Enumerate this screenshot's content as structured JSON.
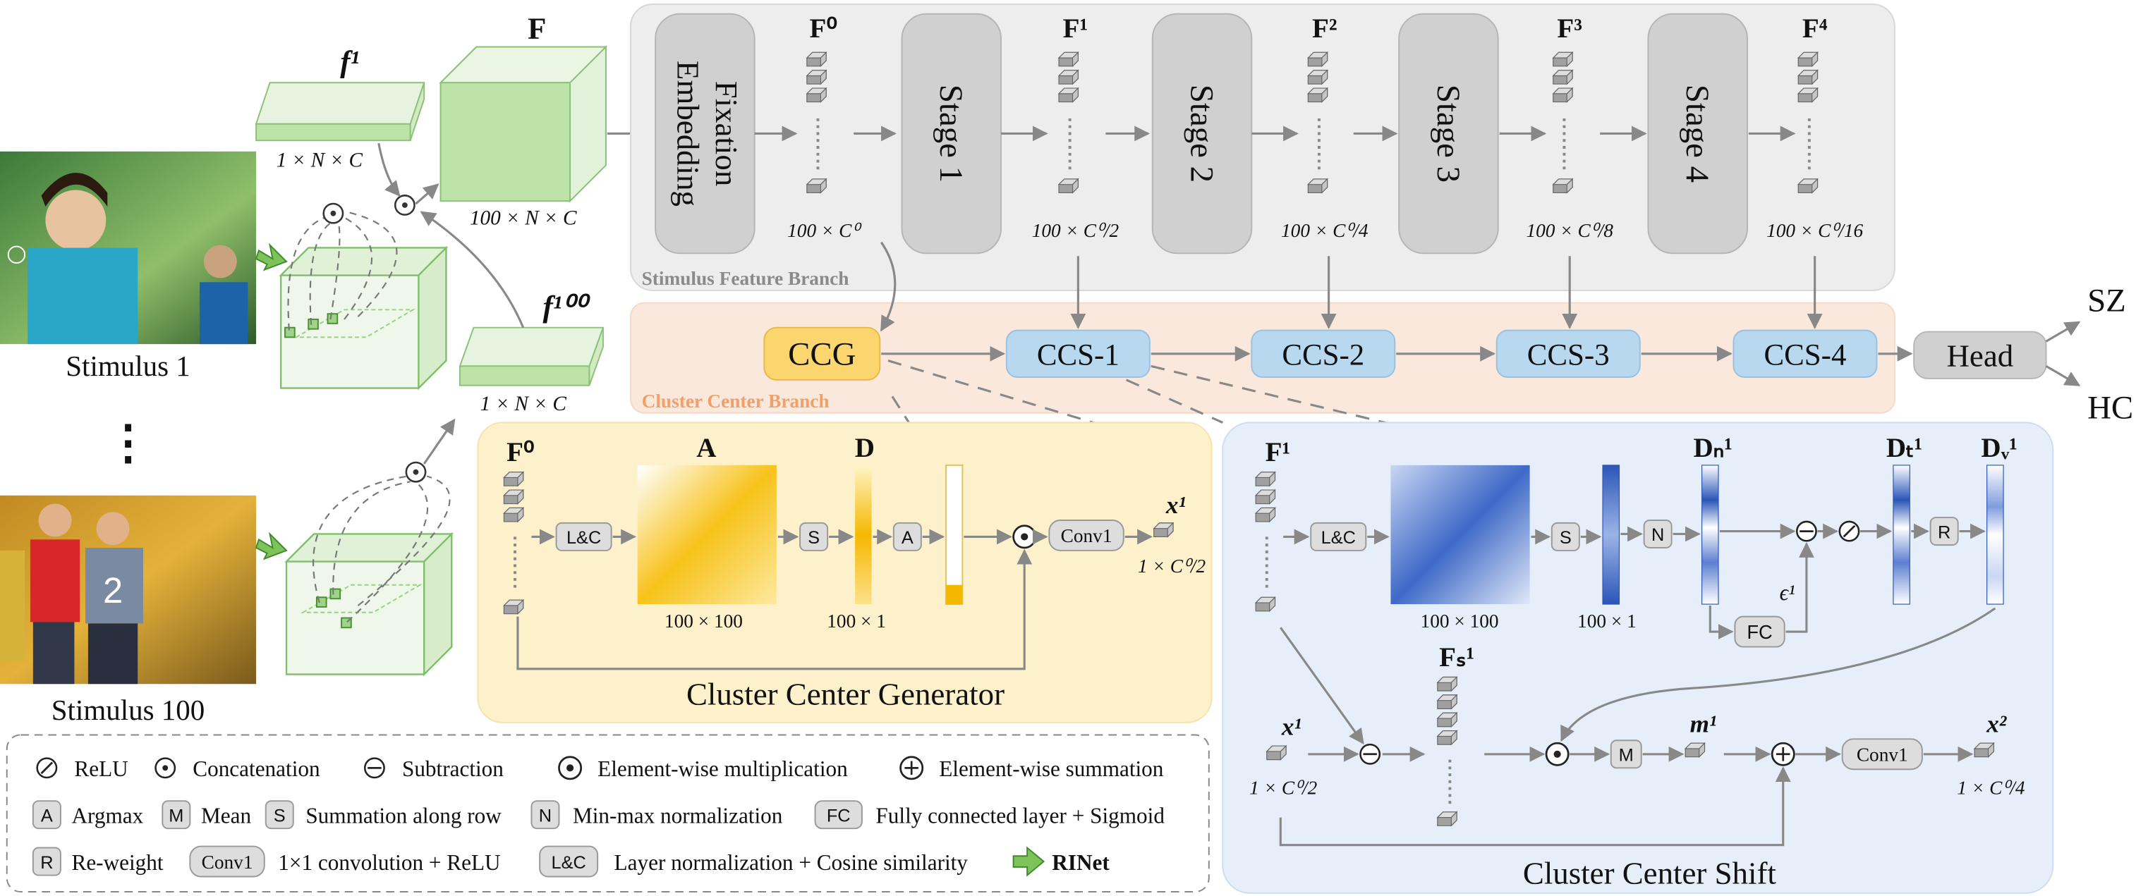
{
  "stimuli": {
    "s1": "Stimulus 1",
    "s100": "Stimulus 100",
    "dots": "⋮"
  },
  "feat": {
    "f1": "f¹",
    "f100": "f¹⁰⁰",
    "F": "F",
    "dimN": "1 × N × C",
    "dim100": "100 × N × C"
  },
  "branch": {
    "sfb": "Stimulus Feature Branch",
    "ccb": "Cluster Center Branch",
    "fix1": "Fixation",
    "fix2": "Embedding",
    "stages": [
      "Stage 1",
      "Stage 2",
      "Stage 3",
      "Stage 4"
    ],
    "fLabels": [
      "F⁰",
      "F¹",
      "F²",
      "F³",
      "F⁴"
    ],
    "fDims": [
      "100 × C⁰",
      "100 × C⁰/2",
      "100 × C⁰/4",
      "100 × C⁰/8",
      "100 × C⁰/16"
    ],
    "ccg": "CCG",
    "ccs": [
      "CCS-1",
      "CCS-2",
      "CCS-3",
      "CCS-4"
    ],
    "head": "Head",
    "out1": "SZ",
    "out2": "HC"
  },
  "ccgPanel": {
    "title": "Cluster Center Generator",
    "F0": "F⁰",
    "A": "A",
    "D": "D",
    "lc": "L&C",
    "s": "S",
    "a": "A",
    "conv": "Conv1",
    "dimA": "100 × 100",
    "dimD": "100 × 1",
    "x1": "x¹",
    "x1dim": "1 × C⁰/2"
  },
  "ccsPanel": {
    "title": "Cluster Center Shift",
    "F1": "F¹",
    "lc": "L&C",
    "s": "S",
    "n": "N",
    "r": "R",
    "fc": "FC",
    "m": "M",
    "conv": "Conv1",
    "dimA": "100 × 100",
    "dimD": "100 × 1",
    "Dn": "Dₙ¹",
    "Dt": "Dₜ¹",
    "Dw": "Dᵥ¹",
    "eps": "ϵ¹",
    "Fs": "Fₛ¹",
    "x1": "x¹",
    "x1dim": "1 × C⁰/2",
    "m1": "m¹",
    "x2": "x²",
    "x2dim": "1 × C⁰/4"
  },
  "legend": {
    "relu": "ReLU",
    "concat": "Concatenation",
    "sub": "Subtraction",
    "mul": "Element-wise multiplication",
    "sum": "Element-wise summation",
    "argmaxKey": "A",
    "argmax": "Argmax",
    "meanKey": "M",
    "mean": "Mean",
    "rowsumKey": "S",
    "rowsum": "Summation along row",
    "normKey": "N",
    "norm": "Min-max normalization",
    "fcKey": "FC",
    "fc": "Fully connected layer + Sigmoid",
    "rwKey": "R",
    "rw": "Re-weight",
    "convKey": "Conv1",
    "conv": "1×1  convolution + ReLU",
    "lcKey": "L&C",
    "lc": "Layer normalization + Cosine similarity",
    "rinet": "RINet"
  }
}
